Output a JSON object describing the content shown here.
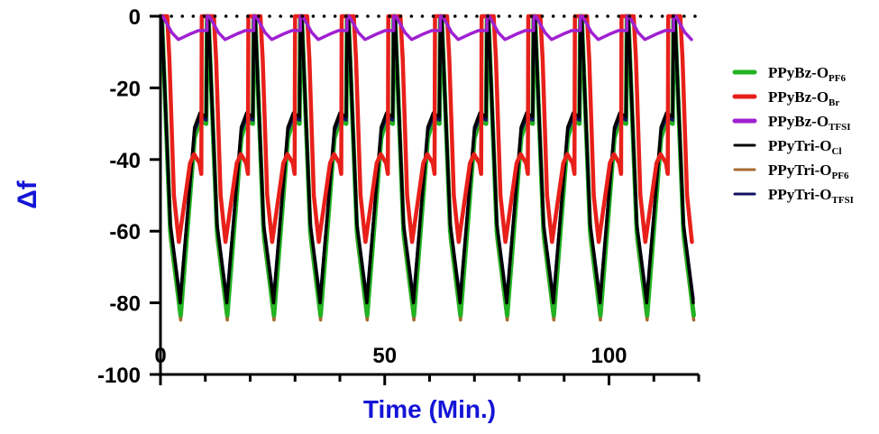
{
  "chart_data": {
    "type": "line",
    "xlabel": "Time (Min.)",
    "ylabel": "Δf",
    "xlim": [
      0,
      120
    ],
    "ylim": [
      -100,
      0
    ],
    "x_ticks": [
      "0",
      "50",
      "100"
    ],
    "y_ticks": [
      "0",
      "-20",
      "-40",
      "-60",
      "-80",
      "-100"
    ],
    "x_tick_values": [
      0,
      50,
      100
    ],
    "y_tick_values": [
      0,
      -20,
      -40,
      -60,
      -80,
      -100
    ],
    "x_minor_step": 10,
    "baseline_zero": "dotted",
    "legend_position": "right",
    "cycle_period_min": 10.4,
    "series": [
      {
        "name": "PPyBz-OPF6",
        "label_main": "PPyBz-O",
        "label_sub": "PF6",
        "color": "#22b222",
        "cycle_shape": [
          [
            0,
            0
          ],
          [
            0.3,
            0
          ],
          [
            2.2,
            -60
          ],
          [
            4.5,
            -83.5
          ],
          [
            7.6,
            -34
          ],
          [
            8.8,
            -29
          ],
          [
            10.2,
            -30
          ]
        ]
      },
      {
        "name": "PPyBz-OBr",
        "label_main": "PPyBz-O",
        "label_sub": "Br",
        "color": "#e8201a",
        "cycle_shape": [
          [
            0,
            0
          ],
          [
            1.5,
            0
          ],
          [
            2.0,
            -12
          ],
          [
            3.0,
            -50
          ],
          [
            4.1,
            -63
          ],
          [
            6.6,
            -41
          ],
          [
            7.5,
            -38.5
          ],
          [
            8.7,
            -41
          ],
          [
            9.1,
            -44
          ],
          [
            9.2,
            0
          ]
        ]
      },
      {
        "name": "PPyBz-OTFSI",
        "label_main": "PPyBz-O",
        "label_sub": "TFSI",
        "color": "#a020d0",
        "cycle_shape": [
          [
            0,
            0
          ],
          [
            0.5,
            0
          ],
          [
            2.5,
            -4.5
          ],
          [
            4.0,
            -6.5
          ],
          [
            6.5,
            -5
          ],
          [
            8.5,
            -4
          ],
          [
            10.4,
            -4
          ]
        ]
      },
      {
        "name": "PPyTri-OCl",
        "label_main": "PPyTri-O",
        "label_sub": "Cl",
        "color": "#000000",
        "cycle_shape": [
          [
            0,
            0
          ],
          [
            0.3,
            0
          ],
          [
            2.2,
            -58
          ],
          [
            4.4,
            -80
          ],
          [
            7.6,
            -31
          ],
          [
            8.8,
            -27
          ],
          [
            10.2,
            -28
          ]
        ]
      },
      {
        "name": "PPyTri-OPF6",
        "label_main": "PPyTri-O",
        "label_sub": "PF6",
        "color": "#a86a30",
        "cycle_shape": [
          [
            0,
            0
          ],
          [
            0.3,
            0
          ],
          [
            2.2,
            -62
          ],
          [
            4.5,
            -84.8
          ],
          [
            7.6,
            -34
          ],
          [
            8.8,
            -29
          ],
          [
            10.2,
            -30
          ]
        ]
      },
      {
        "name": "PPyTri-OTFSI",
        "label_main": "PPyTri-O",
        "label_sub": "TFSI",
        "color": "#101060",
        "cycle_shape": [
          [
            0,
            0
          ],
          [
            0.3,
            0
          ],
          [
            2.2,
            -58
          ],
          [
            4.4,
            -79
          ],
          [
            7.6,
            -32
          ],
          [
            8.8,
            -28
          ],
          [
            10.2,
            -29
          ]
        ]
      }
    ]
  }
}
